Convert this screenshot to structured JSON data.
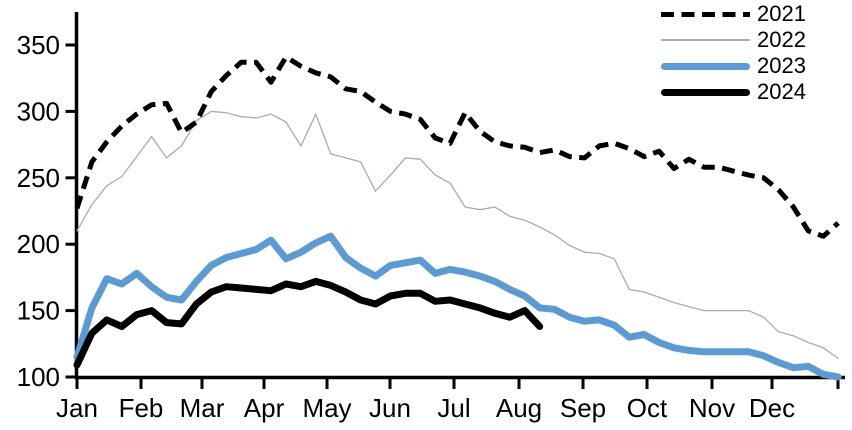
{
  "chart_data": {
    "type": "line",
    "title": "",
    "xlabel": "",
    "ylabel": "",
    "x_axis": {
      "tick_labels": [
        "Jan",
        "Feb",
        "Mar",
        "Apr",
        "May",
        "Jun",
        "Jul",
        "Aug",
        "Sep",
        "Oct",
        "Nov",
        "Dec"
      ]
    },
    "y_axis": {
      "min": 100,
      "max": 350,
      "tick_step": 50,
      "tick_labels": [
        "100",
        "150",
        "200",
        "250",
        "300",
        "350"
      ]
    },
    "legend": {
      "position": "top-right",
      "entries": [
        "2021",
        "2022",
        "2023",
        "2024"
      ]
    },
    "series": [
      {
        "name": "2021",
        "color": "#000000",
        "line_style": "dashed",
        "line_width": 5,
        "values": [
          227,
          262,
          277,
          289,
          298,
          305,
          306,
          284,
          292,
          315,
          327,
          337,
          337,
          322,
          341,
          334,
          329,
          326,
          317,
          315,
          307,
          300,
          298,
          294,
          280,
          276,
          299,
          285,
          277,
          274,
          273,
          269,
          271,
          266,
          265,
          274,
          276,
          272,
          266,
          270,
          257,
          264,
          258,
          258,
          255,
          252,
          250,
          241,
          228,
          210,
          206,
          216
        ]
      },
      {
        "name": "2022",
        "color": "#ababab",
        "line_style": "solid",
        "line_width": 1.3,
        "values": [
          210,
          230,
          244,
          251,
          266,
          281,
          265,
          274,
          293,
          300,
          299,
          296,
          295,
          298,
          292,
          274,
          298,
          268,
          265,
          262,
          240,
          252,
          265,
          264,
          252,
          246,
          228,
          226,
          228,
          221,
          218,
          213,
          207,
          199,
          194,
          193,
          189,
          166,
          164,
          160,
          156,
          153,
          150,
          150,
          150,
          150,
          145,
          134,
          131,
          126,
          122,
          114
        ]
      },
      {
        "name": "2023",
        "color": "#5B9BD5",
        "line_style": "solid",
        "line_width": 7,
        "values": [
          115,
          152,
          174,
          170,
          178,
          168,
          160,
          158,
          172,
          184,
          190,
          193,
          196,
          203,
          189,
          194,
          201,
          206,
          190,
          182,
          176,
          184,
          186,
          188,
          178,
          181,
          179,
          176,
          172,
          166,
          161,
          152,
          151,
          145,
          142,
          143,
          139,
          130,
          132,
          126,
          122,
          120,
          119,
          119,
          119,
          119,
          116,
          111,
          107,
          108,
          102,
          100
        ]
      },
      {
        "name": "2024",
        "color": "#000000",
        "line_style": "solid",
        "line_width": 7,
        "values": [
          109,
          133,
          143,
          138,
          147,
          150,
          141,
          140,
          155,
          164,
          168,
          167,
          166,
          165,
          170,
          168,
          172,
          169,
          164,
          158,
          155,
          161,
          163,
          163,
          157,
          158,
          155,
          152,
          148,
          145,
          150,
          138
        ]
      }
    ]
  }
}
